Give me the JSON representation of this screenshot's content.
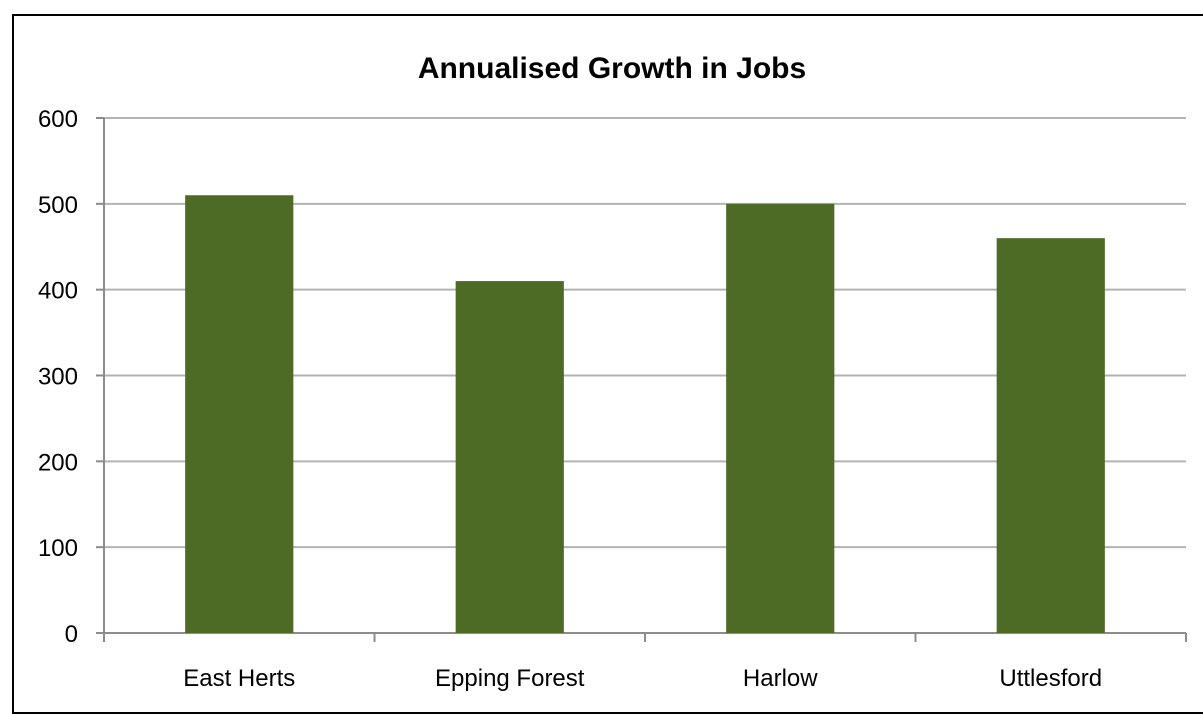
{
  "chart_data": {
    "type": "bar",
    "title": "Annualised Growth in Jobs",
    "xlabel": "",
    "ylabel": "",
    "categories": [
      "East Herts",
      "Epping Forest",
      "Harlow",
      "Uttlesford"
    ],
    "values": [
      510,
      410,
      500,
      460
    ],
    "ylim": [
      0,
      600
    ],
    "yticks": [
      0,
      100,
      200,
      300,
      400,
      500,
      600
    ],
    "grid": true,
    "legend": "none",
    "bar_color": "#4E6B26",
    "grid_color": "#B3B3B3",
    "axis_color": "#8C8C8C"
  }
}
